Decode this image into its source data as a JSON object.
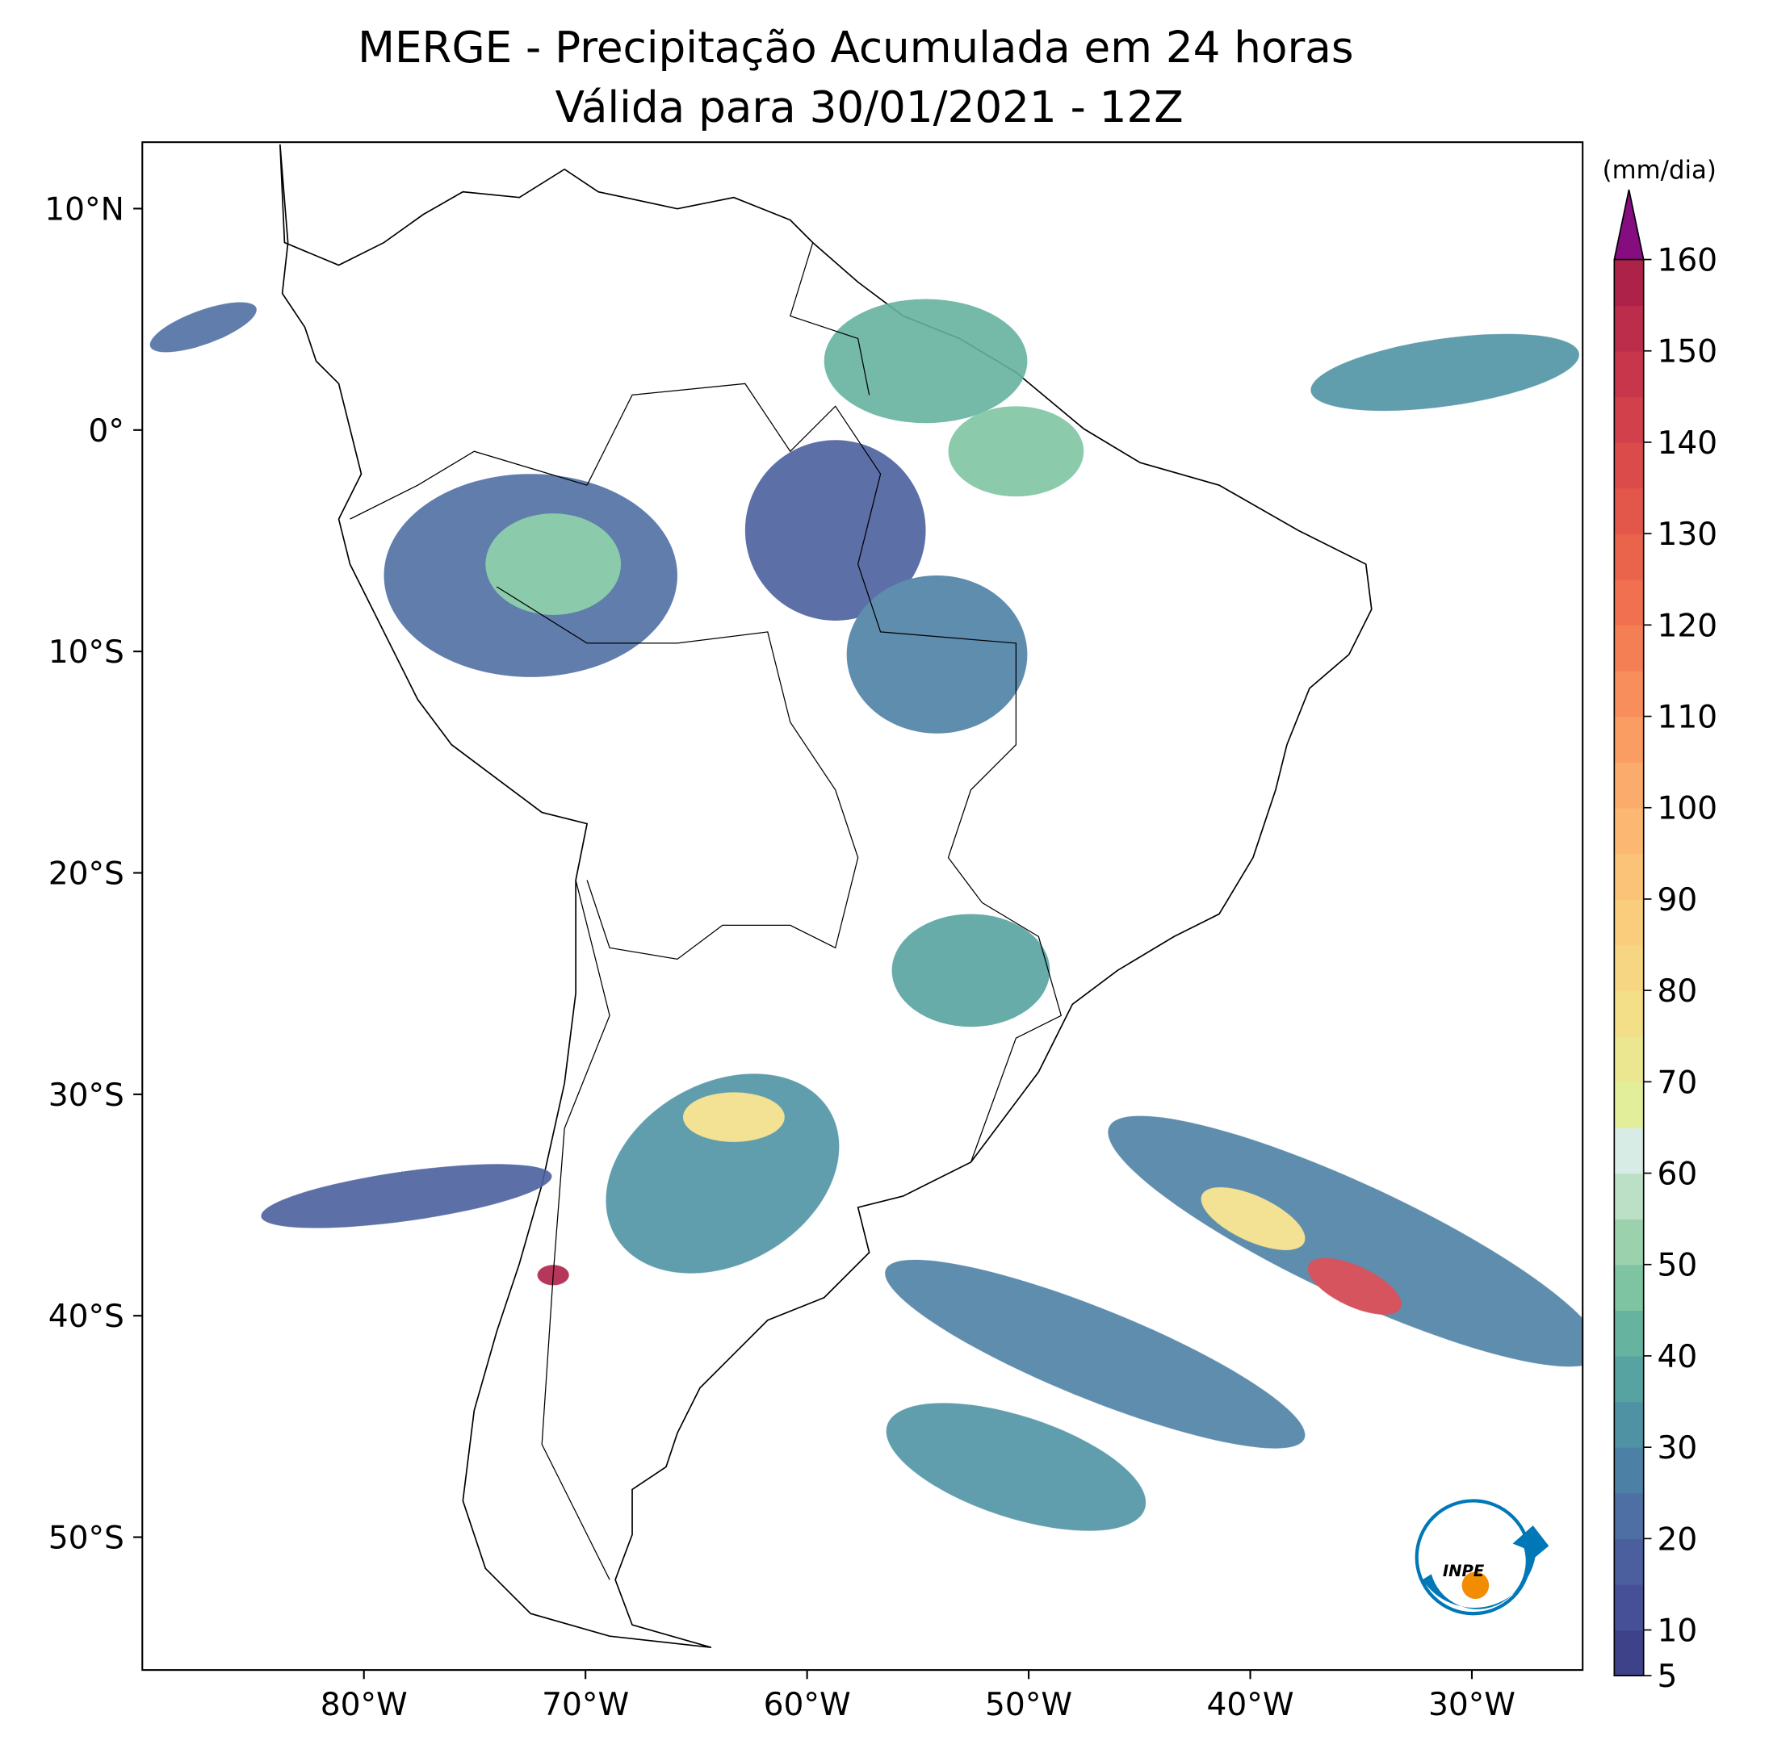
{
  "title": "MERGE - Precipitação Acumulada em 24 horas",
  "subtitle": "Válida para 30/01/2021 - 12Z",
  "map": {
    "xlim": [
      -90,
      -25
    ],
    "ylim": [
      -56,
      13
    ],
    "xticks": [
      {
        "value": -80,
        "label": "80°W"
      },
      {
        "value": -70,
        "label": "70°W"
      },
      {
        "value": -60,
        "label": "60°W"
      },
      {
        "value": -50,
        "label": "50°W"
      },
      {
        "value": -40,
        "label": "40°W"
      },
      {
        "value": -30,
        "label": "30°W"
      }
    ],
    "yticks": [
      {
        "value": 10,
        "label": "10°N"
      },
      {
        "value": 0,
        "label": "0°"
      },
      {
        "value": -10,
        "label": "10°S"
      },
      {
        "value": -20,
        "label": "20°S"
      },
      {
        "value": -30,
        "label": "30°S"
      },
      {
        "value": -40,
        "label": "40°S"
      },
      {
        "value": -50,
        "label": "50°S"
      }
    ],
    "logo": "INPE"
  },
  "colorbar": {
    "label": "(mm/dia)",
    "lim": [
      5,
      160
    ],
    "ticks": [
      5,
      10,
      20,
      30,
      40,
      50,
      60,
      70,
      80,
      90,
      100,
      110,
      120,
      130,
      140,
      150,
      160
    ],
    "colors": [
      "#3e4289",
      "#465096",
      "#4b5f9e",
      "#4e6fa3",
      "#4d80a5",
      "#4f92a4",
      "#57a3a1",
      "#66b39f",
      "#7ec4a2",
      "#9cd1ae",
      "#bce0c6",
      "#d8ece6",
      "#e3ee9b",
      "#ebe690",
      "#f2df88",
      "#f6d682",
      "#f9cd7c",
      "#fbc377",
      "#fcb872",
      "#fbab6b",
      "#f99d63",
      "#f78e5c",
      "#f47f55",
      "#f07050",
      "#ea634b",
      "#e3574a",
      "#db4b4a",
      "#d2414b",
      "#c7364b",
      "#bc2c4b",
      "#ad2249"
    ],
    "extend_color": "#850d7f"
  }
}
